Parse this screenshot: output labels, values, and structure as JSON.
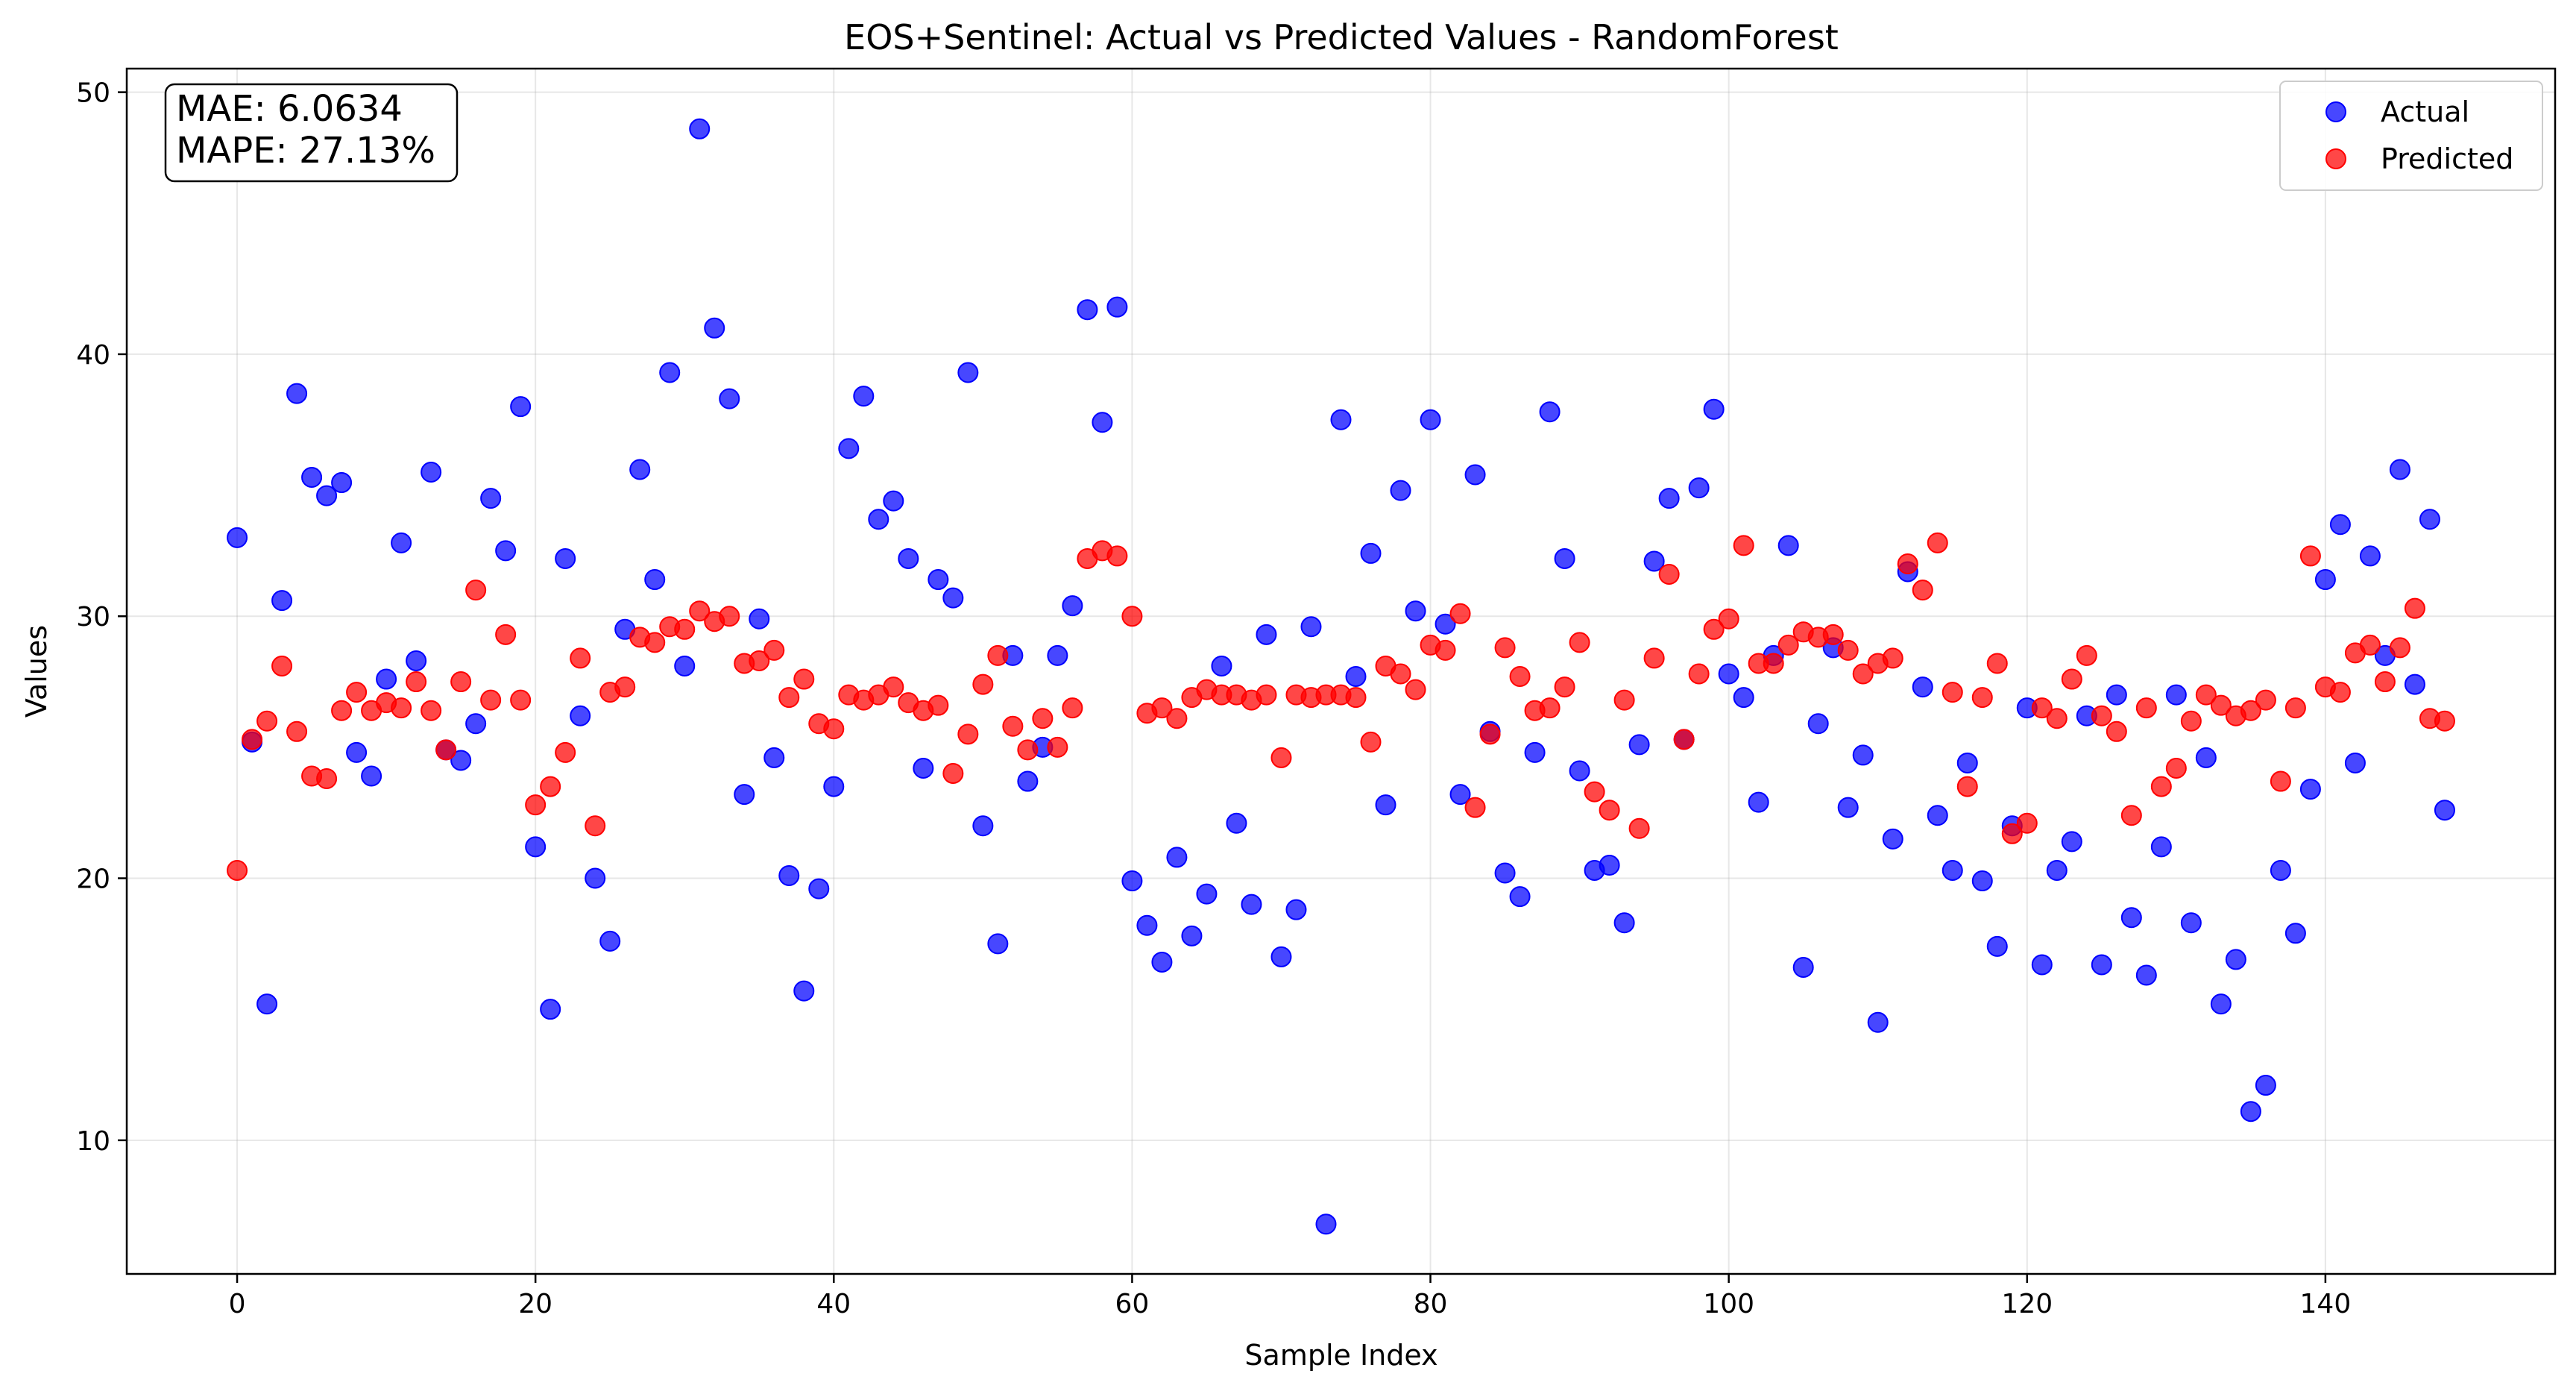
{
  "chart_data": {
    "type": "scatter",
    "title": "EOS+Sentinel: Actual vs Predicted Values - RandomForest",
    "xlabel": "Sample Index",
    "ylabel": "Values",
    "xlim": [
      -7.4,
      155.4
    ],
    "ylim": [
      4.9,
      50.9
    ],
    "x_ticks": [
      0,
      20,
      40,
      60,
      80,
      100,
      120,
      140
    ],
    "y_ticks": [
      10,
      20,
      30,
      40,
      50
    ],
    "grid": true,
    "legend_position": "top-right",
    "annotation": {
      "lines": [
        "MAE: 6.0634",
        "MAPE: 27.13%"
      ]
    },
    "series": [
      {
        "name": "Actual",
        "color": "#0000ff",
        "values": [
          33.0,
          25.2,
          15.2,
          30.6,
          38.5,
          35.3,
          34.6,
          35.1,
          24.8,
          23.9,
          27.6,
          32.8,
          28.3,
          35.5,
          24.9,
          24.5,
          25.9,
          34.5,
          32.5,
          38.0,
          21.2,
          15.0,
          32.2,
          26.2,
          20.0,
          17.6,
          29.5,
          35.6,
          31.4,
          39.3,
          28.1,
          48.6,
          41.0,
          38.3,
          23.2,
          29.9,
          24.6,
          20.1,
          15.7,
          19.6,
          23.5,
          36.4,
          38.4,
          33.7,
          34.4,
          32.2,
          24.2,
          31.4,
          30.7,
          39.3,
          22.0,
          17.5,
          28.5,
          23.7,
          25.0,
          28.5,
          30.4,
          41.7,
          37.4,
          41.8,
          19.9,
          18.2,
          16.8,
          20.8,
          17.8,
          19.4,
          28.1,
          22.1,
          19.0,
          29.3,
          17.0,
          18.8,
          29.6,
          6.8,
          37.5,
          27.7,
          32.4,
          22.8,
          34.8,
          30.2,
          37.5,
          29.7,
          23.2,
          35.4,
          25.6,
          20.2,
          19.3,
          24.8,
          37.8,
          32.2,
          24.1,
          20.3,
          20.5,
          18.3,
          25.1,
          32.1,
          34.5,
          25.3,
          34.9,
          37.9,
          27.8,
          26.9,
          22.9,
          28.5,
          32.7,
          16.6,
          25.9,
          28.8,
          22.7,
          24.7,
          14.5,
          21.5,
          31.7,
          27.3,
          22.4,
          20.3,
          24.4,
          19.9,
          17.4,
          22.0,
          26.5,
          16.7,
          20.3,
          21.4,
          26.2,
          16.7,
          27.0,
          18.5,
          16.3,
          21.2,
          27.0,
          18.3,
          24.6,
          15.2,
          16.9,
          11.1,
          12.1,
          20.3,
          17.9,
          23.4,
          31.4,
          33.5,
          24.4,
          32.3,
          28.5,
          35.6,
          27.4,
          33.7,
          22.6
        ]
      },
      {
        "name": "Predicted",
        "color": "#ff0000",
        "values": [
          20.3,
          25.3,
          26.0,
          28.1,
          25.6,
          23.9,
          23.8,
          26.4,
          27.1,
          26.4,
          26.7,
          26.5,
          27.5,
          26.4,
          24.9,
          27.5,
          31.0,
          26.8,
          29.3,
          26.8,
          22.8,
          23.5,
          24.8,
          28.4,
          22.0,
          27.1,
          27.3,
          29.2,
          29.0,
          29.6,
          29.5,
          30.2,
          29.8,
          30.0,
          28.2,
          28.3,
          28.7,
          26.9,
          27.6,
          25.9,
          25.7,
          27.0,
          26.8,
          27.0,
          27.3,
          26.7,
          26.4,
          26.6,
          24.0,
          25.5,
          27.4,
          28.5,
          25.8,
          24.9,
          26.1,
          25.0,
          26.5,
          32.2,
          32.5,
          32.3,
          30.0,
          26.3,
          26.5,
          26.1,
          26.9,
          27.2,
          27.0,
          27.0,
          26.8,
          27.0,
          24.6,
          27.0,
          26.9,
          27.0,
          27.0,
          26.9,
          25.2,
          28.1,
          27.8,
          27.2,
          28.9,
          28.7,
          30.1,
          22.7,
          25.5,
          28.8,
          27.7,
          26.4,
          26.5,
          27.3,
          29.0,
          23.3,
          22.6,
          26.8,
          21.9,
          28.4,
          31.6,
          25.3,
          27.8,
          29.5,
          29.9,
          32.7,
          28.2,
          28.2,
          28.9,
          29.4,
          29.2,
          29.3,
          28.7,
          27.8,
          28.2,
          28.4,
          32.0,
          31.0,
          32.8,
          27.1,
          23.5,
          26.9,
          28.2,
          21.7,
          22.1,
          26.5,
          26.1,
          27.6,
          28.5,
          26.2,
          25.6,
          22.4,
          26.5,
          23.5,
          24.2,
          26.0,
          27.0,
          26.6,
          26.2,
          26.4,
          26.8,
          23.7,
          26.5,
          32.3,
          27.3,
          27.1,
          28.6,
          28.9,
          27.5,
          28.8,
          30.3,
          26.1,
          26.0
        ]
      }
    ]
  }
}
